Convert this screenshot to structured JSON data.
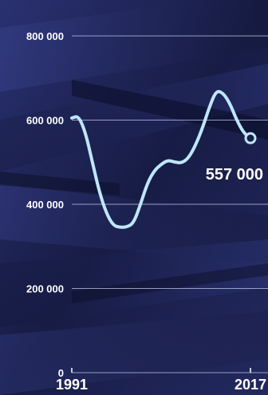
{
  "colors": {
    "background": "#1a1f4a",
    "line": "#bfe6ff",
    "grid": "#aab4d6",
    "text": "#ffffff"
  },
  "chart_data": {
    "type": "line",
    "title": "",
    "xlabel": "",
    "ylabel": "",
    "x": [
      1991,
      1992,
      1993,
      1994,
      1995,
      1996,
      1997,
      1998,
      1999,
      2000,
      2001,
      2002,
      2003,
      2004,
      2005,
      2006,
      2007,
      2008,
      2009,
      2010,
      2011,
      2012,
      2013,
      2014,
      2015,
      2016,
      2017
    ],
    "series": [
      {
        "values": [
          605000,
          610000,
          570000,
          500000,
          430000,
          380000,
          350000,
          345000,
          346000,
          355000,
          400000,
          450000,
          480000,
          495000,
          505000,
          500000,
          498000,
          510000,
          540000,
          580000,
          630000,
          670000,
          665000,
          640000,
          600000,
          570000,
          557000
        ]
      }
    ],
    "xlim": [
      1991,
      2017
    ],
    "ylim": [
      0,
      800000
    ],
    "yticks": [
      "0",
      "200 000",
      "400 000",
      "600 000",
      "800 000"
    ],
    "ytick_values": [
      0,
      200000,
      400000,
      600000,
      800000
    ],
    "xtick_labels": [
      "1991",
      "2017"
    ],
    "end_label": "557 000",
    "grid": true,
    "legend": "none"
  }
}
